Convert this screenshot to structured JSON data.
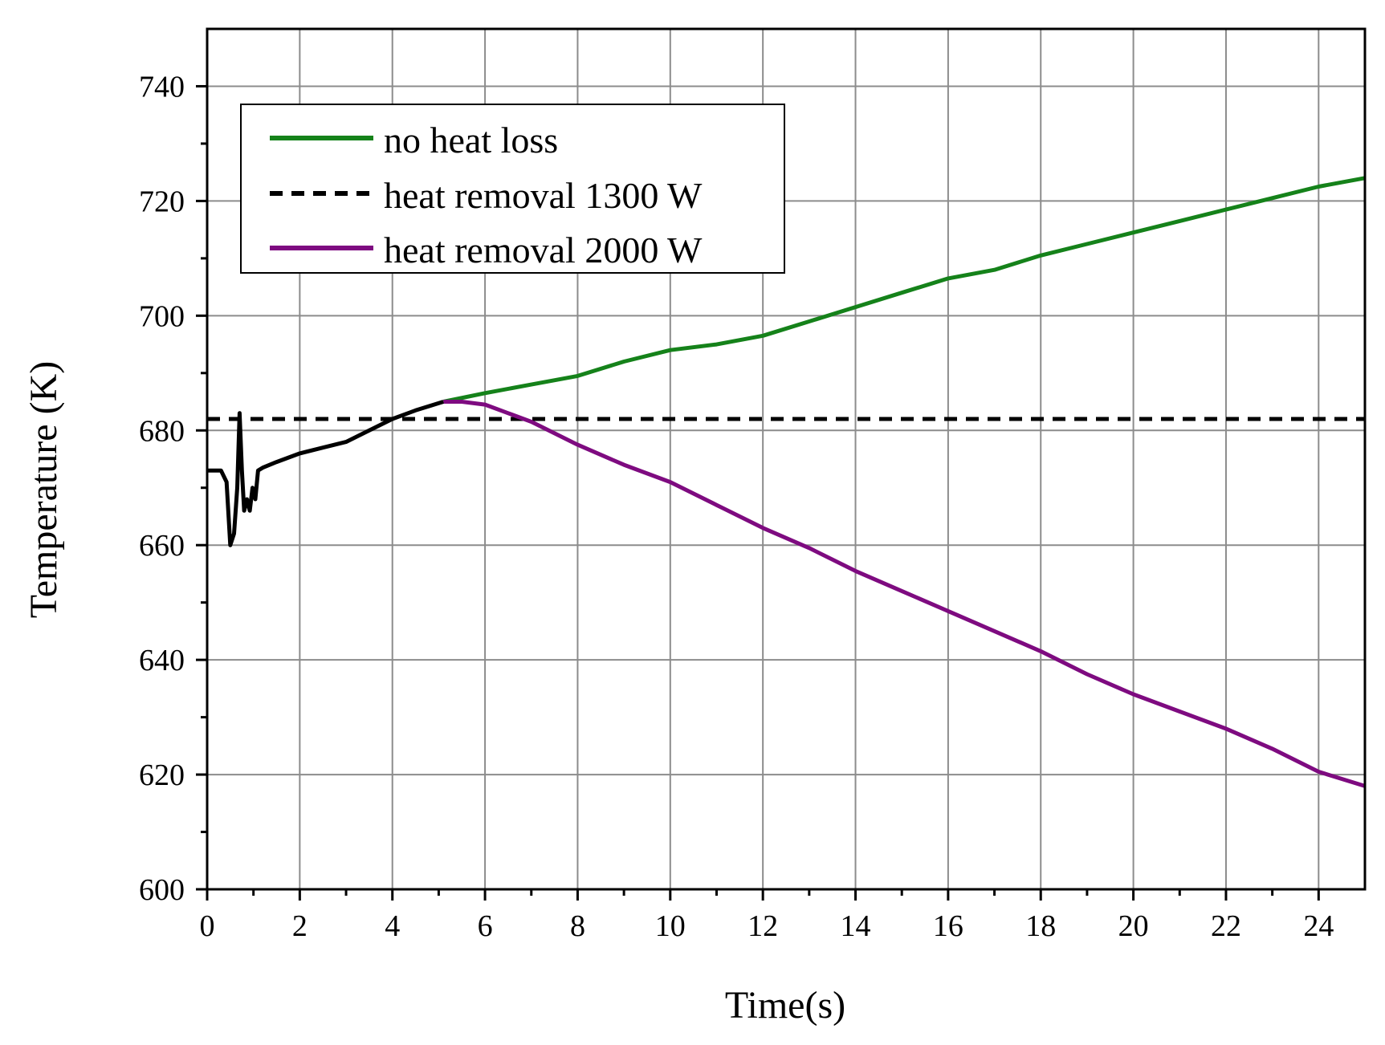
{
  "chart_data": {
    "type": "line",
    "title": "",
    "xlabel": "Time(s)",
    "ylabel": "Temperature (K)",
    "xlim": [
      0,
      25
    ],
    "ylim": [
      600,
      750
    ],
    "x_ticks": [
      0,
      2,
      4,
      6,
      8,
      10,
      12,
      14,
      16,
      18,
      20,
      22,
      24
    ],
    "y_ticks": [
      600,
      620,
      640,
      660,
      680,
      700,
      720,
      740
    ],
    "grid": true,
    "legend_position": "top-left",
    "series": [
      {
        "name": "common transient",
        "in_legend": false,
        "color": "#000000",
        "style": "solid",
        "x": [
          0,
          0.3,
          0.42,
          0.5,
          0.58,
          0.65,
          0.7,
          0.75,
          0.8,
          0.86,
          0.92,
          0.98,
          1.04,
          1.1,
          1.2,
          1.5,
          2.0,
          2.5,
          3.0,
          3.5,
          4.0,
          4.5,
          5.1
        ],
        "y": [
          673,
          673,
          671,
          660,
          662,
          670,
          683,
          673,
          666,
          668,
          666,
          670,
          668,
          673,
          673.5,
          674.5,
          676,
          677,
          678,
          680,
          682,
          683.5,
          685
        ]
      },
      {
        "name": "no heat loss",
        "in_legend": true,
        "color": "#15821a",
        "style": "solid",
        "x": [
          5.1,
          6,
          7,
          8,
          9,
          10,
          11,
          12,
          13,
          14,
          15,
          16,
          17,
          18,
          19,
          20,
          21,
          22,
          23,
          24,
          25
        ],
        "y": [
          685,
          686.5,
          688,
          689.5,
          692,
          694,
          695,
          696.5,
          699,
          701.5,
          704,
          706.5,
          708,
          710.5,
          712.5,
          714.5,
          716.5,
          718.5,
          720.5,
          722.5,
          724
        ]
      },
      {
        "name": "heat removal 1300 W",
        "in_legend": true,
        "color": "#000000",
        "style": "dashed",
        "x": [
          0,
          25
        ],
        "y": [
          682,
          682
        ]
      },
      {
        "name": "heat removal 2000 W",
        "in_legend": true,
        "color": "#7e0b80",
        "style": "solid",
        "x": [
          5.1,
          5.5,
          6,
          6.5,
          7,
          8,
          9,
          10,
          11,
          12,
          13,
          14,
          15,
          16,
          17,
          18,
          19,
          20,
          21,
          22,
          23,
          24,
          25
        ],
        "y": [
          685,
          685,
          684.5,
          683,
          681.5,
          677.5,
          674,
          671,
          667,
          663,
          659.5,
          655.5,
          652,
          648.5,
          645,
          641.5,
          637.5,
          634,
          631,
          628,
          624.5,
          620.5,
          618
        ]
      }
    ]
  }
}
